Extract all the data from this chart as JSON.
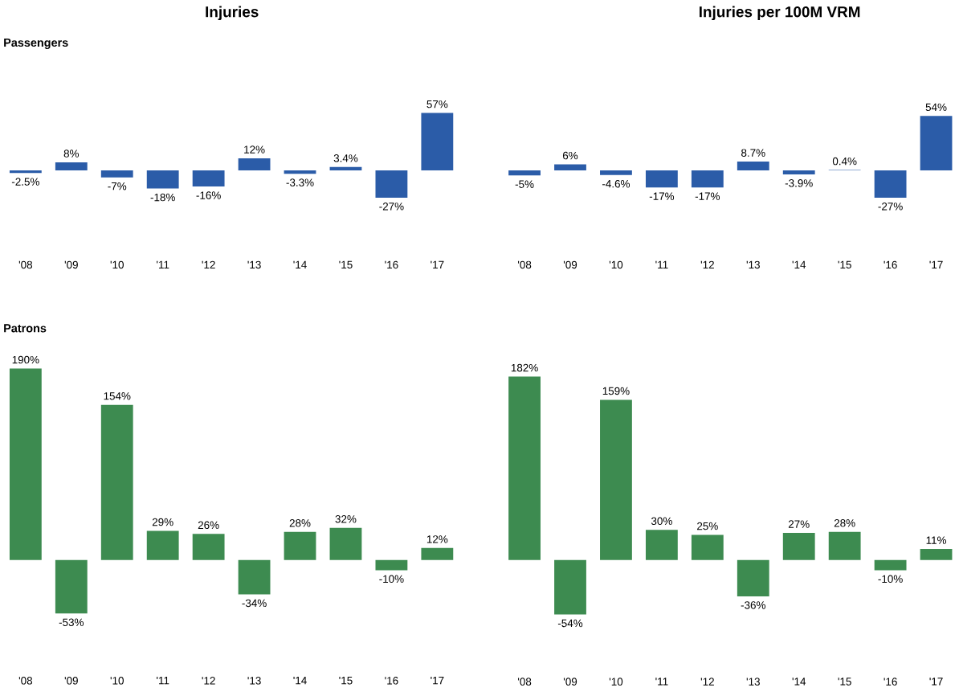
{
  "chart_data": [
    {
      "type": "bar",
      "title": "Injuries",
      "subtitle": "Passengers",
      "categories": [
        "'08",
        "'09",
        "'10",
        "'11",
        "'12",
        "'13",
        "'14",
        "'15",
        "'16",
        "'17"
      ],
      "color": "#2b5ca8",
      "values": [
        -2.5,
        8,
        -7,
        -18,
        -16,
        12,
        -3.3,
        3.4,
        -27,
        57
      ],
      "value_labels": [
        "-2.5%",
        "8%",
        "-7%",
        "-18%",
        "-16%",
        "12%",
        "-3.3%",
        "3.4%",
        "-27%",
        "57%"
      ]
    },
    {
      "type": "bar",
      "title": "Injuries per 100M VRM",
      "categories": [
        "'08",
        "'09",
        "'10",
        "'11",
        "'12",
        "'13",
        "'14",
        "'15",
        "'16",
        "'17"
      ],
      "color": "#2b5ca8",
      "values": [
        -5,
        6,
        -4.6,
        -17,
        -17,
        8.7,
        -3.9,
        0.4,
        -27,
        54
      ],
      "value_labels": [
        "-5%",
        "6%",
        "-4.6%",
        "-17%",
        "-17%",
        "8.7%",
        "-3.9%",
        "0.4%",
        "-27%",
        "54%"
      ]
    },
    {
      "type": "bar",
      "subtitle": "Patrons",
      "categories": [
        "'08",
        "'09",
        "'10",
        "'11",
        "'12",
        "'13",
        "'14",
        "'15",
        "'16",
        "'17"
      ],
      "color": "#3d8b50",
      "values": [
        190,
        -53,
        154,
        29,
        26,
        -34,
        28,
        32,
        -10,
        12
      ],
      "value_labels": [
        "190%",
        "-53%",
        "154%",
        "29%",
        "26%",
        "-34%",
        "28%",
        "32%",
        "-10%",
        "12%"
      ]
    },
    {
      "type": "bar",
      "categories": [
        "'08",
        "'09",
        "'10",
        "'11",
        "'12",
        "'13",
        "'14",
        "'15",
        "'16",
        "'17"
      ],
      "color": "#3d8b50",
      "values": [
        182,
        -54,
        159,
        30,
        25,
        -36,
        27,
        28,
        -10,
        11
      ],
      "value_labels": [
        "182%",
        "-54%",
        "159%",
        "30%",
        "25%",
        "-36%",
        "27%",
        "28%",
        "-10%",
        "11%"
      ]
    }
  ]
}
